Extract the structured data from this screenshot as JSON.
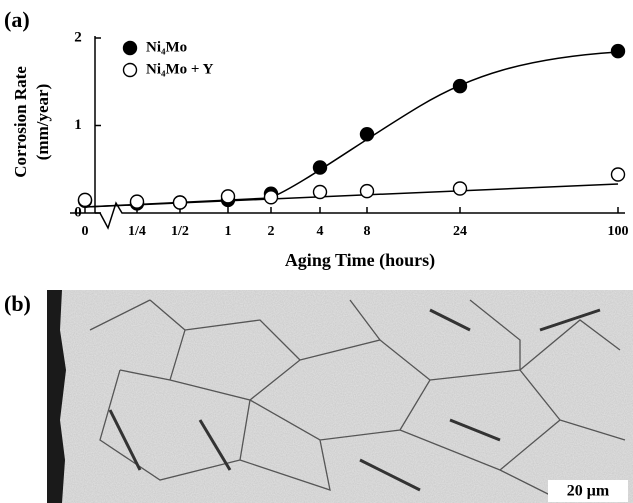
{
  "figure": {
    "panel_a": "(a)",
    "panel_b": "(b)",
    "scale_bar": "20 μm"
  },
  "chart_data": {
    "type": "dot",
    "ylabel": [
      "Corrosion Rate",
      "(mm/year)"
    ],
    "xlabel": "Aging Time (hours)",
    "categories": [
      "0",
      "1/4",
      "1/2",
      "1",
      "2",
      "4",
      "8",
      "24",
      "100"
    ],
    "ylim": [
      0,
      2
    ],
    "yticks": [
      0,
      1,
      2
    ],
    "series": [
      {
        "name": "Ni₄Mo",
        "color": "#000000",
        "filled": true,
        "values": [
          0.14,
          0.11,
          0.12,
          0.15,
          0.22,
          0.52,
          0.9,
          1.45,
          1.85
        ]
      },
      {
        "name": "Ni₄Mo + Y",
        "color": "#000000",
        "filled": false,
        "values": [
          0.15,
          0.13,
          0.12,
          0.19,
          0.18,
          0.24,
          0.25,
          0.28,
          0.44
        ]
      }
    ]
  }
}
